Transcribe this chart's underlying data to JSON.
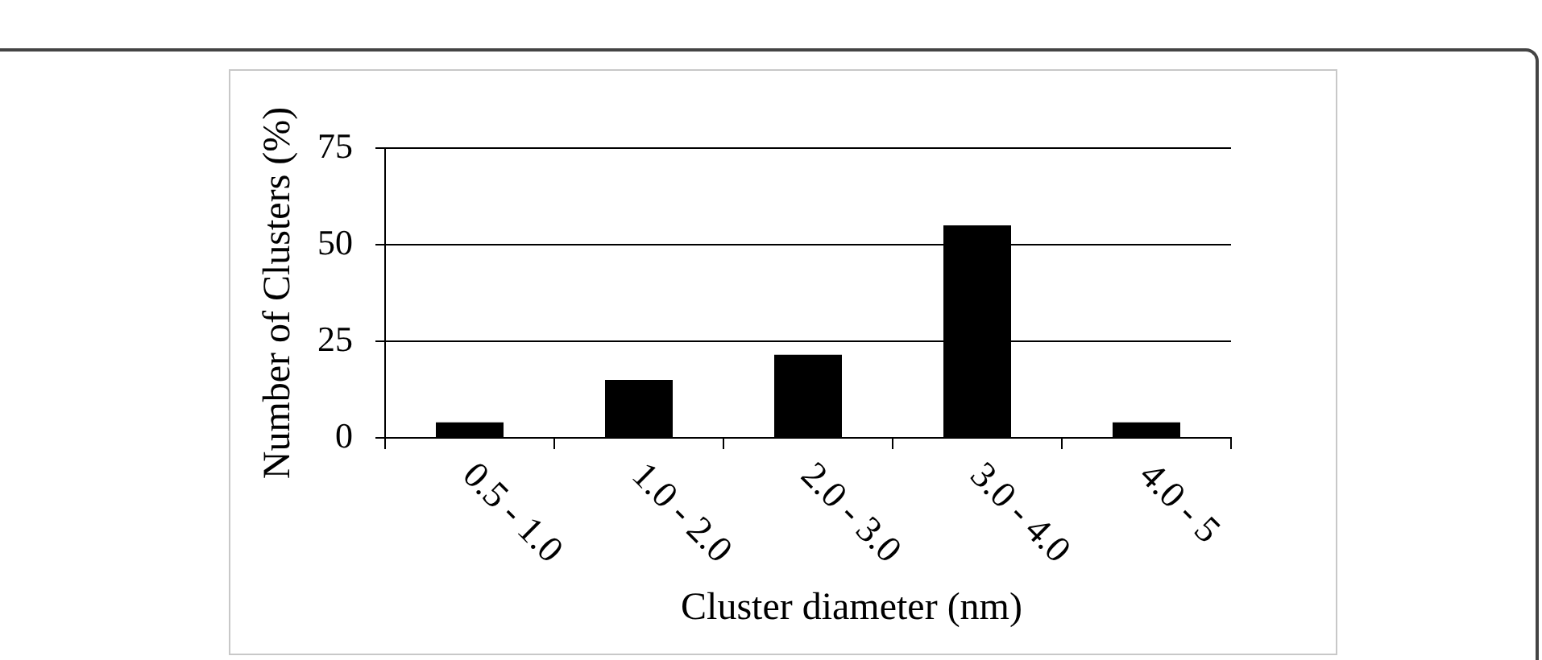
{
  "chart_data": {
    "type": "bar",
    "categories": [
      "0.5 - 1.0",
      "1.0 - 2.0",
      "2.0 - 3.0",
      "3.0 - 4.0",
      "4.0 - 5"
    ],
    "values": [
      4,
      15,
      21.5,
      55,
      4
    ],
    "color": "#000000",
    "xlabel": "Cluster diameter (nm)",
    "ylabel": "Number of Clusters (%)",
    "ylim": [
      0,
      75
    ],
    "yticks": [
      0,
      25,
      50,
      75
    ],
    "grid": "y"
  }
}
